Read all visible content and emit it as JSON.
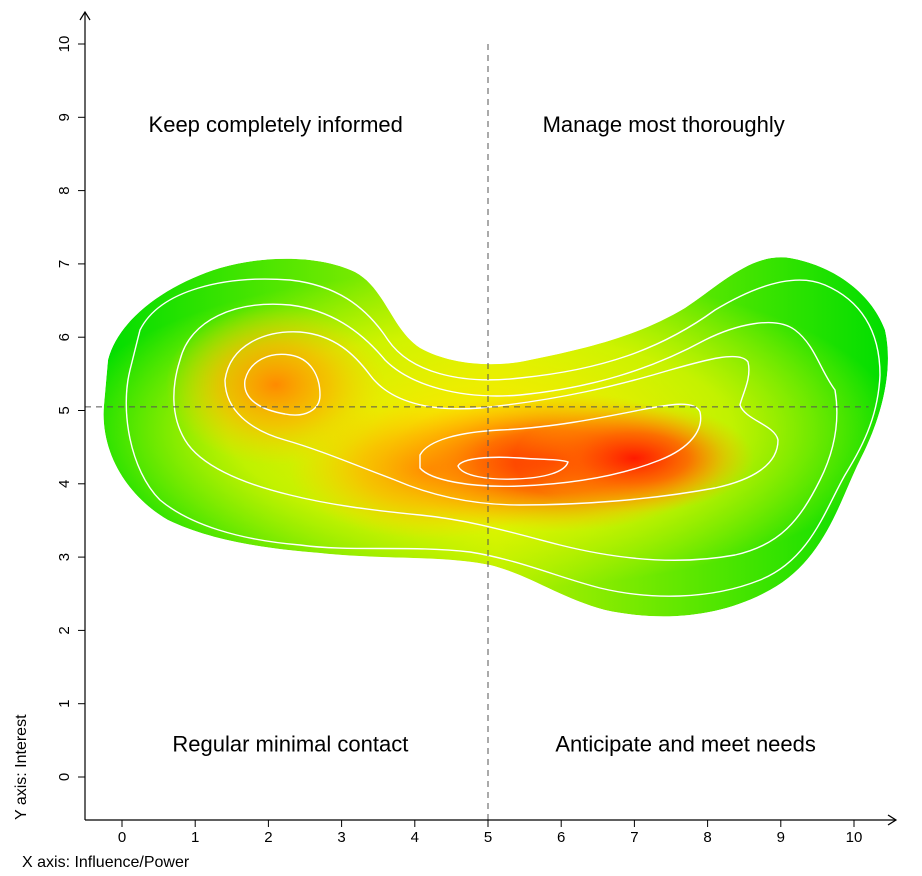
{
  "chart_data": {
    "type": "heatmap",
    "title": "",
    "xlabel": "X axis: Influence/Power",
    "ylabel": "Y axis: Interest",
    "xlim": [
      -0.5,
      10.5
    ],
    "ylim": [
      -0.5,
      10.2
    ],
    "x_ticks": [
      0,
      1,
      2,
      3,
      4,
      5,
      6,
      7,
      8,
      9,
      10
    ],
    "y_ticks": [
      0,
      1,
      2,
      3,
      4,
      5,
      6,
      7,
      8,
      9,
      10
    ],
    "x_tick_labels": [
      "0",
      "1",
      "2",
      "3",
      "4",
      "5",
      "6",
      "7",
      "8",
      "9",
      "10"
    ],
    "y_tick_labels": [
      "0",
      "1",
      "2",
      "3",
      "4",
      "5",
      "6",
      "7",
      "8",
      "9",
      "10"
    ],
    "divider_x": 5,
    "divider_y": 5.05,
    "quadrants": [
      {
        "name": "top-left",
        "label": "Keep completely informed",
        "x": 2.1,
        "y": 8.8
      },
      {
        "name": "top-right",
        "label": "Manage most thoroughly",
        "x": 7.4,
        "y": 8.8
      },
      {
        "name": "bottom-left",
        "label": "Regular minimal contact",
        "x": 2.3,
        "y": 0.35
      },
      {
        "name": "bottom-right",
        "label": "Anticipate and meet needs",
        "x": 7.7,
        "y": 0.35
      }
    ],
    "density_peaks": [
      {
        "x": 2.1,
        "y": 5.35,
        "level": 0.78
      },
      {
        "x": 5.9,
        "y": 4.3,
        "level": 1.0
      },
      {
        "x": 7.0,
        "y": 4.35,
        "level": 0.85
      },
      {
        "x": 4.2,
        "y": 4.2,
        "level": 0.75
      }
    ],
    "colors": {
      "low": "#00e000",
      "mid": "#ffff00",
      "high": "#ff1a00",
      "contour": "#ffffff",
      "divider": "#555555"
    }
  }
}
